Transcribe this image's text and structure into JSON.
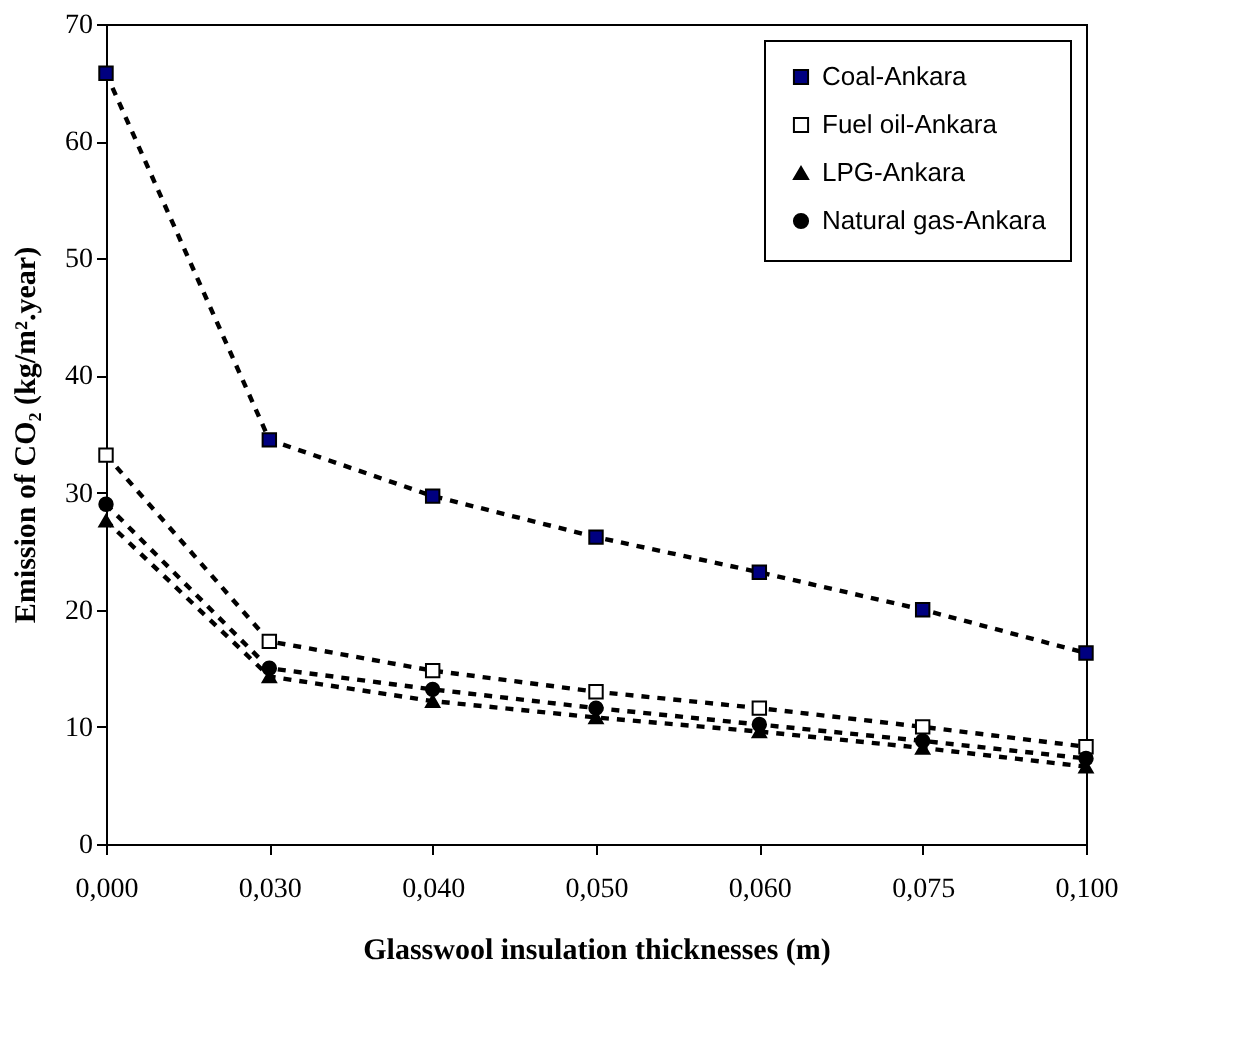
{
  "chart_data": {
    "type": "line",
    "xlabel": "Glasswool insulation thicknesses (m)",
    "ylabel": "Emission of CO₂ (kg/m².year)",
    "categories": [
      "0,000",
      "0,030",
      "0,040",
      "0,050",
      "0,060",
      "0,075",
      "0,100"
    ],
    "series": [
      {
        "name": "Coal-Ankara",
        "color": "#000080",
        "marker": "square",
        "values": [
          65.8,
          34.5,
          29.7,
          26.2,
          23.2,
          20.0,
          16.3
        ]
      },
      {
        "name": "Fuel oil-Ankara",
        "color": "#ffffff",
        "marker": "square",
        "values": [
          33.2,
          17.3,
          14.8,
          13.0,
          11.6,
          10.0,
          8.3
        ]
      },
      {
        "name": "LPG-Ankara",
        "color": "#000000",
        "marker": "triangle",
        "values": [
          27.6,
          14.3,
          12.2,
          10.8,
          9.6,
          8.2,
          6.6
        ]
      },
      {
        "name": "Natural gas-Ankara",
        "color": "#000000",
        "marker": "circle",
        "values": [
          29.0,
          15.0,
          13.2,
          11.6,
          10.2,
          8.8,
          7.3
        ]
      }
    ],
    "ylim": [
      0,
      70
    ],
    "yticks": [
      0,
      10,
      20,
      30,
      40,
      50,
      60,
      70
    ],
    "line_style": "dashed",
    "grid": false,
    "legend": "top right"
  }
}
